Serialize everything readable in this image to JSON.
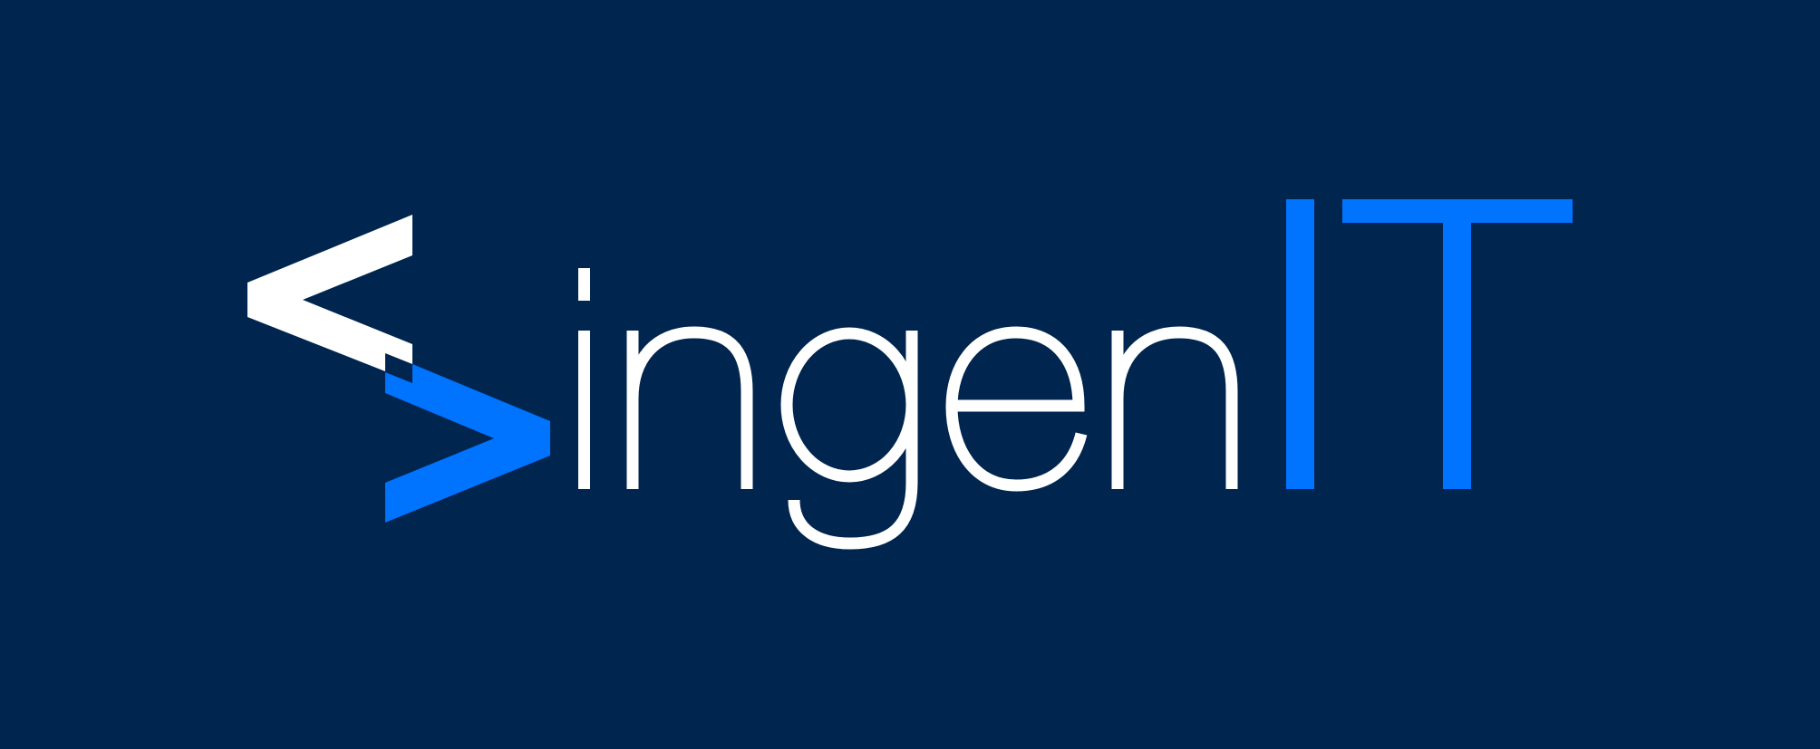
{
  "logo": {
    "wordmark_light": "ingen",
    "wordmark_accent": "IT",
    "text": "ingenIT"
  },
  "colors": {
    "background": "#00254f",
    "primary": "#ffffff",
    "accent": "#0073ff"
  },
  "icons": {
    "mark": "code-brackets-icon"
  }
}
